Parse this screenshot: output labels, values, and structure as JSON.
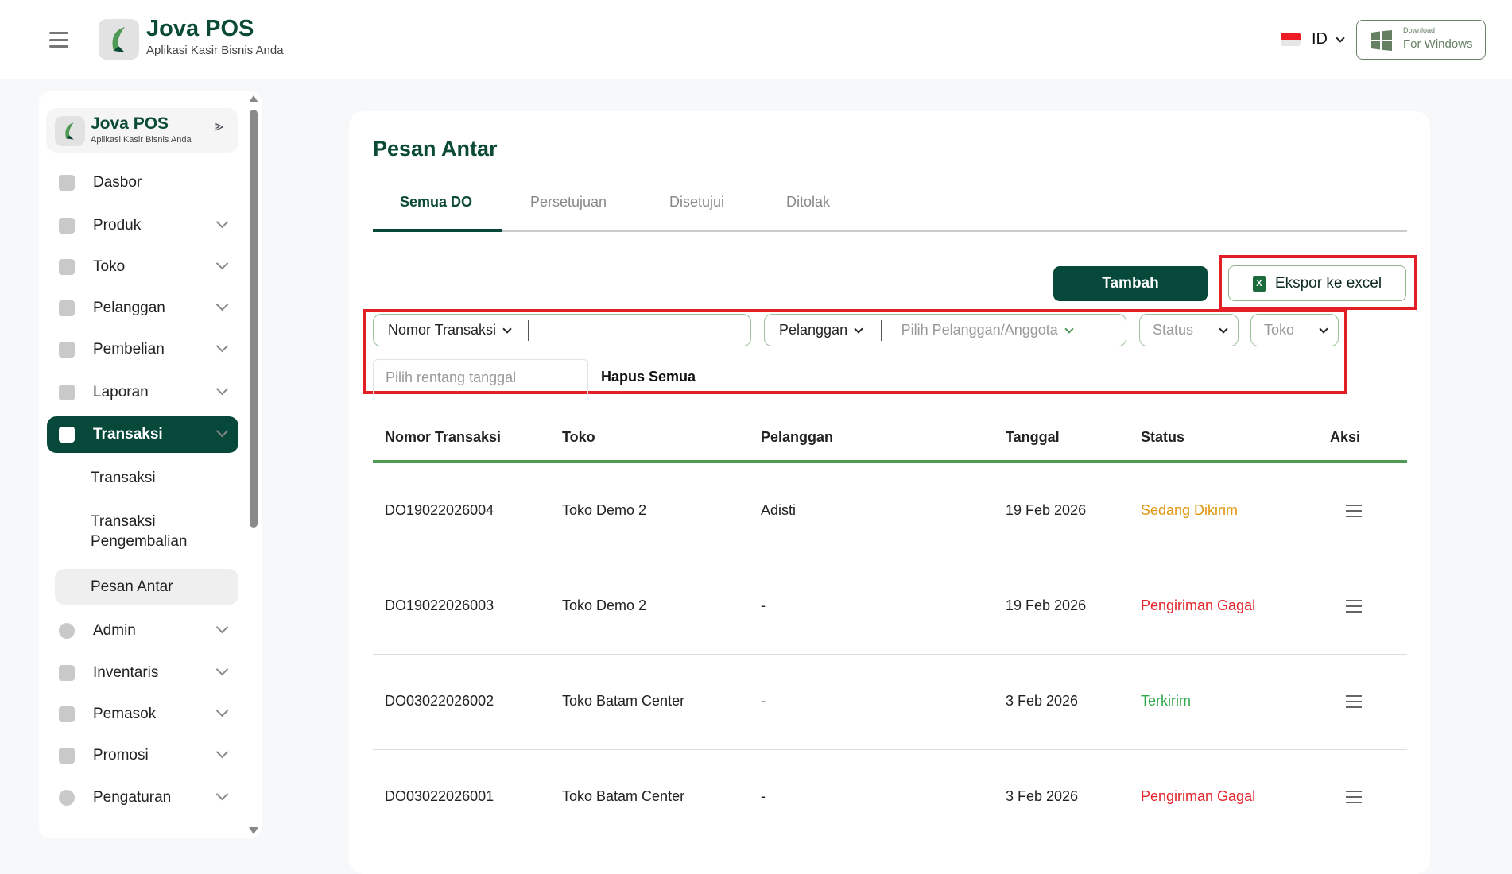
{
  "header": {
    "brand": "Jova POS",
    "tagline": "Aplikasi Kasir Bisnis Anda",
    "language": "ID",
    "download_small": "Download",
    "download_big": "For Windows"
  },
  "sidebar": {
    "brand": "Jova POS",
    "tagline": "Aplikasi Kasir Bisnis Anda",
    "items": [
      {
        "label": "Dasbor"
      },
      {
        "label": "Produk"
      },
      {
        "label": "Toko"
      },
      {
        "label": "Pelanggan"
      },
      {
        "label": "Pembelian"
      },
      {
        "label": "Laporan"
      },
      {
        "label": "Transaksi"
      },
      {
        "label": "Admin"
      },
      {
        "label": "Inventaris"
      },
      {
        "label": "Pemasok"
      },
      {
        "label": "Promosi"
      },
      {
        "label": "Pengaturan"
      }
    ],
    "subitems": [
      {
        "label": "Transaksi"
      },
      {
        "label": "Transaksi Pengembalian"
      },
      {
        "label": "Pesan Antar"
      }
    ]
  },
  "main": {
    "title": "Pesan Antar",
    "tabs": [
      {
        "label": "Semua DO"
      },
      {
        "label": "Persetujuan"
      },
      {
        "label": "Disetujui"
      },
      {
        "label": "Ditolak"
      }
    ],
    "add_label": "Tambah",
    "export_label": "Ekspor ke excel",
    "filters": {
      "search_by": "Nomor Transaksi",
      "customer_by": "Pelanggan",
      "customer_placeholder": "Pilih Pelanggan/Anggota",
      "status_placeholder": "Status",
      "store_placeholder": "Toko",
      "date_placeholder": "Pilih rentang tanggal",
      "clear_all": "Hapus Semua"
    },
    "columns": [
      "Nomor Transaksi",
      "Toko",
      "Pelanggan",
      "Tanggal",
      "Status",
      "Aksi"
    ],
    "rows": [
      {
        "no": "DO19022026004",
        "store": "Toko Demo 2",
        "customer": "Adisti",
        "date": "19 Feb 2026",
        "status": "Sedang Dikirim",
        "status_color": "#e0960f"
      },
      {
        "no": "DO19022026003",
        "store": "Toko Demo 2",
        "customer": "-",
        "date": "19 Feb 2026",
        "status": "Pengiriman Gagal",
        "status_color": "#e3242b"
      },
      {
        "no": "DO03022026002",
        "store": "Toko Batam Center",
        "customer": "-",
        "date": "3 Feb 2026",
        "status": "Terkirim",
        "status_color": "#2ea84a"
      },
      {
        "no": "DO03022026001",
        "store": "Toko Batam Center",
        "customer": "-",
        "date": "3 Feb 2026",
        "status": "Pengiriman Gagal",
        "status_color": "#e3242b"
      }
    ]
  },
  "colors": {
    "primary": "#06493a",
    "highlight": "#e31e24"
  }
}
